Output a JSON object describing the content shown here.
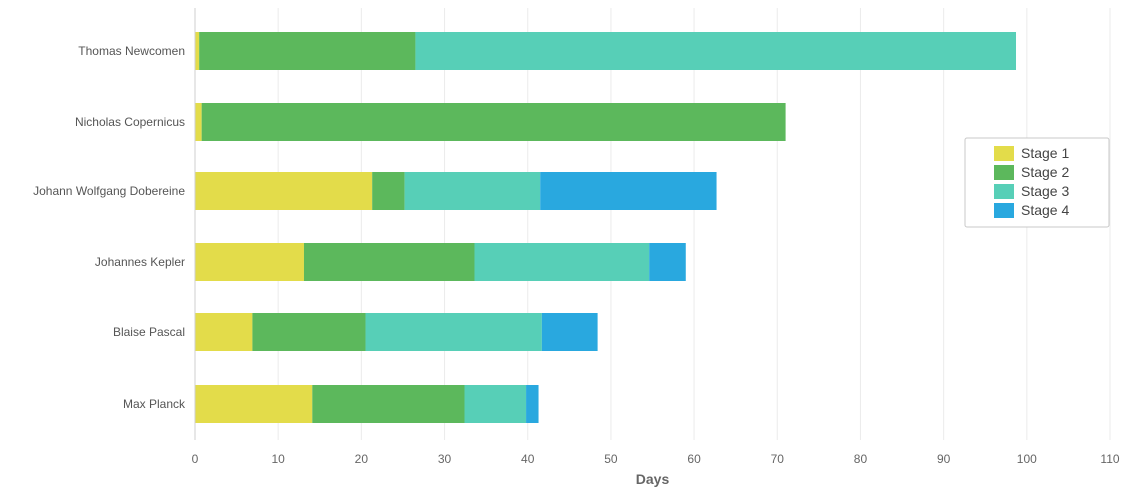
{
  "chart_data": {
    "type": "bar",
    "orientation": "horizontal",
    "stacked": true,
    "categories": [
      "Thomas Newcomen",
      "Nicholas Copernicus",
      "Johann Wolfgang Dobereine",
      "Johannes Kepler",
      "Blaise Pascal",
      "Max Planck"
    ],
    "series": [
      {
        "name": "Stage 1",
        "color": "#e3dc4a",
        "values": [
          0.5,
          0.8,
          21.3,
          13.1,
          6.9,
          14.1
        ]
      },
      {
        "name": "Stage 2",
        "color": "#5cb85c",
        "values": [
          26,
          70.2,
          3.9,
          20.5,
          13.6,
          18.3
        ]
      },
      {
        "name": "Stage 3",
        "color": "#57cfb7",
        "values": [
          72.2,
          0,
          16.3,
          21.0,
          21.2,
          7.4
        ]
      },
      {
        "name": "Stage 4",
        "color": "#29a8df",
        "values": [
          0,
          0,
          21.2,
          4.4,
          6.7,
          1.5
        ]
      }
    ],
    "xlabel": "Days",
    "ylabel": "",
    "xlim": [
      0,
      110
    ],
    "xticks": [
      0,
      10,
      20,
      30,
      40,
      50,
      60,
      70,
      80,
      90,
      100,
      110
    ],
    "grid": true,
    "legend_position": "right"
  }
}
